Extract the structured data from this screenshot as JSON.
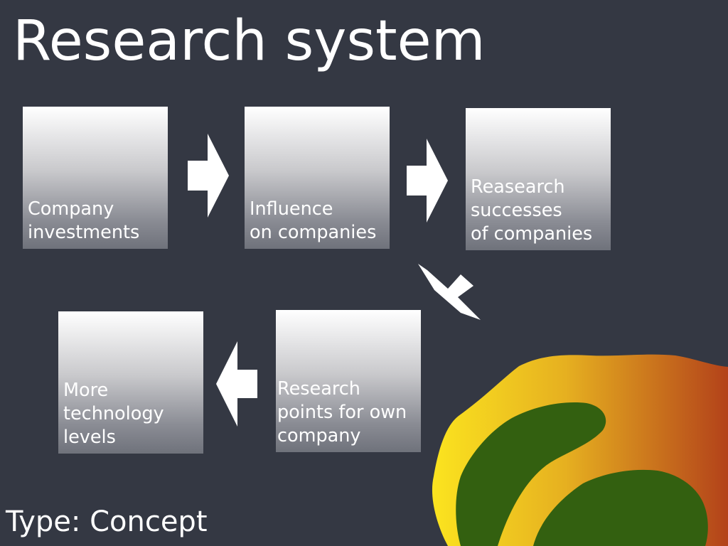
{
  "title": "Research system",
  "footer": "Type: Concept",
  "boxes": [
    {
      "label": "Company\ninvestments"
    },
    {
      "label": "Influence\non companies"
    },
    {
      "label": "Reasearch\nsuccesses\nof companies"
    },
    {
      "label": "Research\npoints for own\ncompany"
    },
    {
      "label": "More\ntechnology\nlevels"
    }
  ],
  "colors": {
    "background": "#343843",
    "text": "#ffffff",
    "arrow": "#ffffff",
    "blob_outer": "#e8c020",
    "blob_edge": "#b5451b",
    "blob_inner": "#336010"
  }
}
